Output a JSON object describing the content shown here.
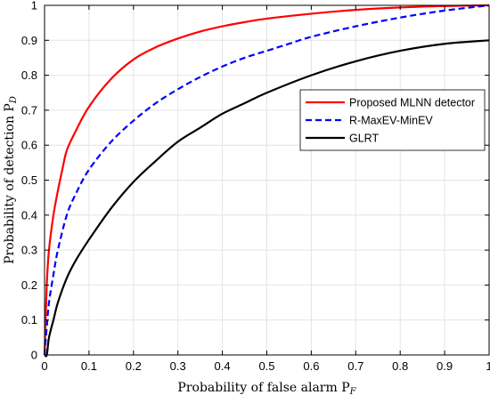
{
  "chart_data": {
    "type": "line",
    "title": "",
    "xlabel": "Probability of false alarm P",
    "xlabel_sub": "F",
    "ylabel": "Probability of detection P",
    "ylabel_sub": "D",
    "xlim": [
      0,
      1
    ],
    "ylim": [
      0,
      1
    ],
    "grid": true,
    "legend_position": "center-right",
    "x_ticks": [
      "0",
      "0.1",
      "0.2",
      "0.3",
      "0.4",
      "0.5",
      "0.6",
      "0.7",
      "0.8",
      "0.9",
      "1"
    ],
    "y_ticks": [
      "0",
      "0.1",
      "0.2",
      "0.3",
      "0.4",
      "0.5",
      "0.6",
      "0.7",
      "0.8",
      "0.9",
      "1"
    ],
    "series": [
      {
        "name": "Proposed MLNN detector",
        "color": "#ff0000",
        "dash": "solid",
        "x": [
          0,
          0.005,
          0.01,
          0.02,
          0.03,
          0.04,
          0.05,
          0.07,
          0.1,
          0.15,
          0.2,
          0.25,
          0.3,
          0.35,
          0.4,
          0.45,
          0.5,
          0.6,
          0.7,
          0.8,
          0.9,
          1.0
        ],
        "y": [
          0,
          0.2,
          0.3,
          0.4,
          0.47,
          0.53,
          0.585,
          0.64,
          0.71,
          0.79,
          0.845,
          0.88,
          0.905,
          0.925,
          0.94,
          0.952,
          0.962,
          0.976,
          0.987,
          0.994,
          0.998,
          1.0
        ]
      },
      {
        "name": "R-MaxEV-MinEV",
        "color": "#0000ff",
        "dash": "dashed",
        "x": [
          0,
          0.005,
          0.01,
          0.02,
          0.03,
          0.05,
          0.07,
          0.1,
          0.15,
          0.2,
          0.25,
          0.3,
          0.35,
          0.4,
          0.45,
          0.5,
          0.55,
          0.6,
          0.7,
          0.8,
          0.9,
          1.0
        ],
        "y": [
          0,
          0.08,
          0.15,
          0.23,
          0.3,
          0.4,
          0.46,
          0.53,
          0.61,
          0.67,
          0.72,
          0.76,
          0.795,
          0.825,
          0.85,
          0.87,
          0.89,
          0.91,
          0.94,
          0.965,
          0.985,
          1.0
        ]
      },
      {
        "name": "GLRT",
        "color": "#000000",
        "dash": "solid",
        "x": [
          0,
          0.005,
          0.01,
          0.02,
          0.03,
          0.05,
          0.07,
          0.1,
          0.15,
          0.2,
          0.25,
          0.3,
          0.35,
          0.4,
          0.45,
          0.5,
          0.6,
          0.7,
          0.8,
          0.9,
          1.0
        ],
        "y": [
          0,
          0.0,
          0.05,
          0.1,
          0.15,
          0.22,
          0.27,
          0.33,
          0.42,
          0.495,
          0.555,
          0.61,
          0.65,
          0.69,
          0.72,
          0.75,
          0.8,
          0.84,
          0.87,
          0.89,
          0.9
        ]
      }
    ]
  }
}
